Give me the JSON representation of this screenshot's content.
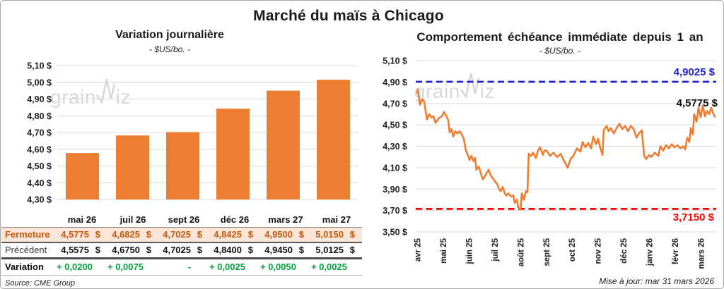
{
  "main_title": "Marché du maïs à Chicago",
  "watermark": {
    "pre": "grain",
    "post": "iz"
  },
  "left": {
    "title": "Variation journalière",
    "subtitle": "- $US/bo. -",
    "source": "Source: CME Group"
  },
  "right": {
    "title": "Comportement échéance immédiate depuis 1 an",
    "subtitle": "- $US/bo. -",
    "resistance_label": "4,9025 $",
    "last_label": "4,5775 $",
    "support_label": "3,7150 $",
    "updated": "Mise à jour: mar 31 mars 2026"
  },
  "table": {
    "header": [
      "mai 26",
      "juil 26",
      "sept 26",
      "déc 26",
      "mars 27",
      "mai 27"
    ],
    "rows": [
      {
        "label": "Fermeture",
        "style": "fermeture",
        "currency": "$",
        "values": [
          "4,5775",
          "4,6825",
          "4,7025",
          "4,8425",
          "4,9500",
          "5,0150"
        ]
      },
      {
        "label": "Précédent",
        "style": "precedent",
        "currency": "$",
        "values": [
          "4,5575",
          "4,6750",
          "4,7025",
          "4,8400",
          "4,9450",
          "5,0125"
        ]
      },
      {
        "label": "Variation",
        "style": "variation",
        "currency": "",
        "values": [
          "+ 0,0200",
          "+ 0,0075",
          "-",
          "+ 0,0025",
          "+ 0,0050",
          "+ 0,0025"
        ]
      }
    ]
  },
  "colors": {
    "orange": "#ED7D31",
    "grid": "#D9D9D9",
    "axis_text": "#1F1F1F",
    "resistance_blue": "#2222CC",
    "support_red": "#FF0000",
    "gain_green": "#00A33C",
    "fermeture_text": "#C55A11",
    "fermeture_bg": "#FBE5D6",
    "watermark": "#D8D8D8",
    "border_dark": "#595959"
  },
  "chart_data": [
    {
      "type": "bar",
      "title": "Variation journalière",
      "ylabel": "$US/bo.",
      "categories": [
        "mai 26",
        "juil 26",
        "sept 26",
        "déc 26",
        "mars 27",
        "mai 27"
      ],
      "values": [
        4.5775,
        4.6825,
        4.7025,
        4.8425,
        4.95,
        5.015
      ],
      "ylim": [
        4.3,
        5.1
      ],
      "ytick_step": 0.1,
      "grid": true,
      "bar_color": "#ED7D31"
    },
    {
      "type": "line",
      "title": "Comportement échéance immédiate depuis 1 an",
      "ylabel": "$US/bo.",
      "x_labels": [
        "avr 25",
        "mai 25",
        "juin 25",
        "juil 25",
        "août 25",
        "sept 25",
        "oct 25",
        "nov 25",
        "déc 25",
        "janv 26",
        "févr 26",
        "mars 26"
      ],
      "ylim": [
        3.5,
        5.1
      ],
      "ytick_step": 0.2,
      "grid": true,
      "line_color": "#ED7D31",
      "resistance": 4.9025,
      "support": 3.715,
      "last_value": 4.5775,
      "points": [
        [
          0.0,
          4.8
        ],
        [
          0.03,
          4.83
        ],
        [
          0.11,
          4.69
        ],
        [
          0.19,
          4.74
        ],
        [
          0.27,
          4.72
        ],
        [
          0.38,
          4.55
        ],
        [
          0.47,
          4.6
        ],
        [
          0.55,
          4.57
        ],
        [
          0.63,
          4.58
        ],
        [
          0.71,
          4.52
        ],
        [
          0.8,
          4.55
        ],
        [
          0.88,
          4.57
        ],
        [
          0.96,
          4.58
        ],
        [
          1.04,
          4.62
        ],
        [
          1.12,
          4.59
        ],
        [
          1.21,
          4.54
        ],
        [
          1.26,
          4.43
        ],
        [
          1.34,
          4.46
        ],
        [
          1.4,
          4.39
        ],
        [
          1.48,
          4.44
        ],
        [
          1.56,
          4.42
        ],
        [
          1.65,
          4.44
        ],
        [
          1.73,
          4.41
        ],
        [
          1.81,
          4.37
        ],
        [
          1.89,
          4.26
        ],
        [
          1.98,
          4.21
        ],
        [
          2.03,
          4.17
        ],
        [
          2.11,
          4.21
        ],
        [
          2.19,
          4.16
        ],
        [
          2.25,
          4.19
        ],
        [
          2.3,
          4.08
        ],
        [
          2.39,
          4.11
        ],
        [
          2.47,
          4.05
        ],
        [
          2.55,
          3.99
        ],
        [
          2.63,
          4.02
        ],
        [
          2.72,
          4.06
        ],
        [
          2.77,
          4.08
        ],
        [
          2.85,
          4.03
        ],
        [
          2.94,
          4.0
        ],
        [
          3.02,
          3.97
        ],
        [
          3.1,
          3.95
        ],
        [
          3.18,
          3.9
        ],
        [
          3.24,
          3.88
        ],
        [
          3.32,
          3.92
        ],
        [
          3.4,
          3.86
        ],
        [
          3.46,
          3.84
        ],
        [
          3.54,
          3.86
        ],
        [
          3.65,
          3.83
        ],
        [
          3.73,
          3.84
        ],
        [
          3.79,
          3.77
        ],
        [
          3.87,
          3.8
        ],
        [
          3.92,
          3.73
        ],
        [
          4.01,
          3.71
        ],
        [
          4.06,
          3.86
        ],
        [
          4.14,
          3.8
        ],
        [
          4.22,
          3.88
        ],
        [
          4.28,
          3.87
        ],
        [
          4.33,
          4.23
        ],
        [
          4.42,
          4.21
        ],
        [
          4.5,
          4.24
        ],
        [
          4.61,
          4.19
        ],
        [
          4.69,
          4.26
        ],
        [
          4.77,
          4.29
        ],
        [
          4.88,
          4.22
        ],
        [
          4.94,
          4.26
        ],
        [
          5.02,
          4.26
        ],
        [
          5.16,
          4.21
        ],
        [
          5.29,
          4.24
        ],
        [
          5.43,
          4.2
        ],
        [
          5.57,
          4.23
        ],
        [
          5.71,
          4.16
        ],
        [
          5.84,
          4.1
        ],
        [
          5.95,
          4.18
        ],
        [
          6.06,
          4.21
        ],
        [
          6.2,
          4.28
        ],
        [
          6.34,
          4.25
        ],
        [
          6.42,
          4.34
        ],
        [
          6.53,
          4.29
        ],
        [
          6.64,
          4.33
        ],
        [
          6.75,
          4.28
        ],
        [
          6.83,
          4.39
        ],
        [
          6.94,
          4.32
        ],
        [
          7.02,
          4.37
        ],
        [
          7.11,
          4.28
        ],
        [
          7.19,
          4.22
        ],
        [
          7.24,
          4.45
        ],
        [
          7.35,
          4.49
        ],
        [
          7.43,
          4.44
        ],
        [
          7.52,
          4.47
        ],
        [
          7.63,
          4.42
        ],
        [
          7.74,
          4.47
        ],
        [
          7.85,
          4.51
        ],
        [
          7.96,
          4.46
        ],
        [
          8.07,
          4.49
        ],
        [
          8.18,
          4.44
        ],
        [
          8.29,
          4.49
        ],
        [
          8.4,
          4.46
        ],
        [
          8.51,
          4.38
        ],
        [
          8.61,
          4.42
        ],
        [
          8.72,
          4.45
        ],
        [
          8.81,
          4.21
        ],
        [
          8.89,
          4.18
        ],
        [
          9.0,
          4.22
        ],
        [
          9.08,
          4.2
        ],
        [
          9.22,
          4.24
        ],
        [
          9.36,
          4.21
        ],
        [
          9.44,
          4.3
        ],
        [
          9.55,
          4.26
        ],
        [
          9.66,
          4.31
        ],
        [
          9.77,
          4.28
        ],
        [
          9.88,
          4.32
        ],
        [
          9.99,
          4.29
        ],
        [
          10.1,
          4.31
        ],
        [
          10.21,
          4.28
        ],
        [
          10.32,
          4.3
        ],
        [
          10.4,
          4.27
        ],
        [
          10.48,
          4.38
        ],
        [
          10.56,
          4.34
        ],
        [
          10.62,
          4.47
        ],
        [
          10.7,
          4.41
        ],
        [
          10.75,
          4.6
        ],
        [
          10.84,
          4.53
        ],
        [
          10.92,
          4.66
        ],
        [
          11.0,
          4.57
        ],
        [
          11.08,
          4.68
        ],
        [
          11.17,
          4.58
        ],
        [
          11.25,
          4.63
        ],
        [
          11.33,
          4.6
        ],
        [
          11.41,
          4.66
        ],
        [
          11.5,
          4.6
        ],
        [
          11.55,
          4.5775
        ]
      ]
    }
  ]
}
